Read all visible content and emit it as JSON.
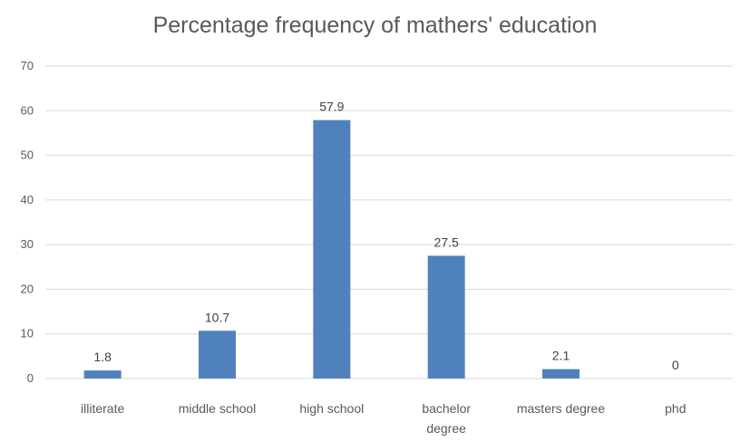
{
  "chart_data": {
    "type": "bar",
    "title": "Percentage frequency of mathers' education",
    "categories": [
      [
        "illiterate"
      ],
      [
        "middle school"
      ],
      [
        "high school"
      ],
      [
        "bachelor",
        "degree"
      ],
      [
        "masters degree"
      ],
      [
        "phd"
      ]
    ],
    "values": [
      1.8,
      10.7,
      57.9,
      27.5,
      2.1,
      0
    ],
    "data_labels": [
      "1.8",
      "10.7",
      "57.9",
      "27.5",
      "2.1",
      "0"
    ],
    "xlabel": "",
    "ylabel": "",
    "ylim": [
      0,
      70
    ],
    "yticks": [
      "0",
      "10",
      "20",
      "30",
      "40",
      "50",
      "60",
      "70"
    ],
    "grid": true,
    "legend": "none",
    "bar_color": "#4f81bd",
    "grid_color": "#d9d9d9"
  }
}
